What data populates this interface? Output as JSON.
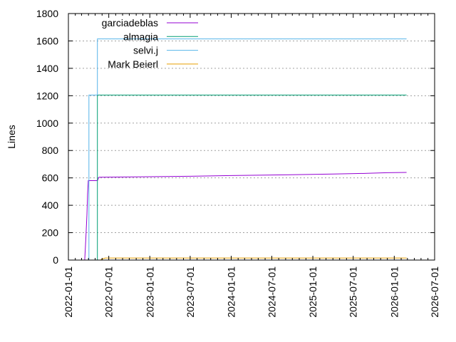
{
  "chart_data": {
    "type": "line",
    "title": "",
    "xlabel": "",
    "ylabel": "Lines",
    "xlim": [
      "2022-01-01",
      "2026-07-01"
    ],
    "ylim": [
      0,
      1800
    ],
    "y_ticks": [
      0,
      200,
      400,
      600,
      800,
      1000,
      1200,
      1400,
      1600,
      1800
    ],
    "x_ticks": [
      "2022-01-01",
      "2022-07-01",
      "2023-01-01",
      "2023-07-01",
      "2024-01-01",
      "2024-07-01",
      "2025-01-01",
      "2025-07-01",
      "2026-01-01",
      "2026-07-01"
    ],
    "grid": "horizontal dotted",
    "legend_position": "top-left",
    "series": [
      {
        "name": "garciadeblas",
        "color": "#9400d3",
        "points": [
          [
            "2022-03-15",
            0
          ],
          [
            "2022-03-20",
            150
          ],
          [
            "2022-03-25",
            330
          ],
          [
            "2022-03-28",
            480
          ],
          [
            "2022-03-31",
            580
          ],
          [
            "2022-05-11",
            580
          ],
          [
            "2022-05-18",
            605
          ],
          [
            "2022-12-01",
            608
          ],
          [
            "2023-07-01",
            612
          ],
          [
            "2024-01-01",
            617
          ],
          [
            "2024-09-01",
            622
          ],
          [
            "2025-04-01",
            628
          ],
          [
            "2025-09-01",
            633
          ],
          [
            "2025-12-01",
            638
          ],
          [
            "2026-02-25",
            640
          ]
        ]
      },
      {
        "name": "almagia",
        "color": "#009e73",
        "points": [
          [
            "2022-05-11",
            0
          ],
          [
            "2022-05-11",
            1205
          ],
          [
            "2026-02-25",
            1205
          ]
        ]
      },
      {
        "name": "selvi.j",
        "color": "#56b4e9",
        "points": [
          [
            "2022-04-03",
            0
          ],
          [
            "2022-04-03",
            1205
          ],
          [
            "2022-05-11",
            1205
          ],
          [
            "2022-05-11",
            1615
          ],
          [
            "2026-02-25",
            1615
          ]
        ]
      },
      {
        "name": "Mark Beierl",
        "color": "#e69f00",
        "points": [
          [
            "2022-05-25",
            0
          ],
          [
            "2022-06-01",
            8
          ],
          [
            "2022-06-15",
            15
          ],
          [
            "2026-02-25",
            15
          ]
        ]
      }
    ]
  }
}
